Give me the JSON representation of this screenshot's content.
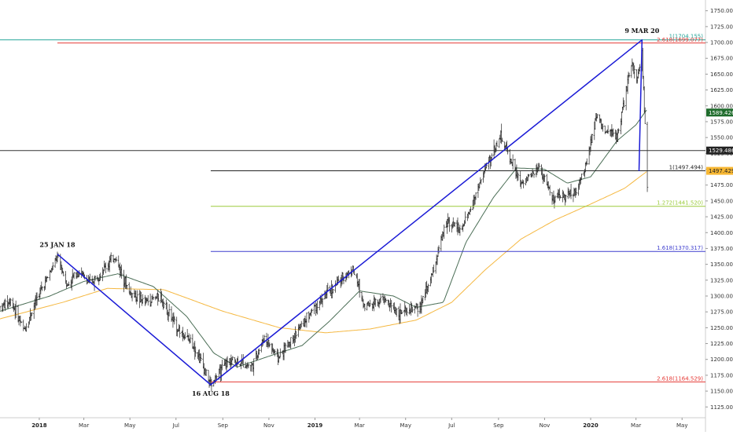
{
  "chart_data": {
    "type": "candlestick",
    "ylim": [
      1108,
      1762
    ],
    "x_start": "2017-11-10",
    "x_end": "2020-06-01",
    "y_ticks": [
      1125,
      1150,
      1175,
      1200,
      1225,
      1250,
      1275,
      1300,
      1325,
      1350,
      1375,
      1400,
      1425,
      1450,
      1475,
      1500,
      1525,
      1550,
      1575,
      1600,
      1625,
      1650,
      1675,
      1700,
      1725,
      1750
    ],
    "x_ticks": [
      {
        "label": "2018",
        "date": "2018-01-01",
        "bold": true
      },
      {
        "label": "Mar",
        "date": "2018-03-01"
      },
      {
        "label": "May",
        "date": "2018-05-01"
      },
      {
        "label": "Jul",
        "date": "2018-07-01"
      },
      {
        "label": "Sep",
        "date": "2018-09-01"
      },
      {
        "label": "Nov",
        "date": "2018-11-01"
      },
      {
        "label": "2019",
        "date": "2019-01-01",
        "bold": true
      },
      {
        "label": "Mar",
        "date": "2019-03-01"
      },
      {
        "label": "May",
        "date": "2019-05-01"
      },
      {
        "label": "Jul",
        "date": "2019-07-01"
      },
      {
        "label": "Sep",
        "date": "2019-09-01"
      },
      {
        "label": "Nov",
        "date": "2019-11-01"
      },
      {
        "label": "2020",
        "date": "2020-01-01",
        "bold": true
      },
      {
        "label": "Mar",
        "date": "2020-03-01"
      },
      {
        "label": "May",
        "date": "2020-05-01"
      }
    ],
    "price_anchors": [
      [
        "2017-11-10",
        1282
      ],
      [
        "2017-11-25",
        1292
      ],
      [
        "2017-12-12",
        1245
      ],
      [
        "2017-12-28",
        1295
      ],
      [
        "2018-01-25",
        1360
      ],
      [
        "2018-02-08",
        1316
      ],
      [
        "2018-02-20",
        1340
      ],
      [
        "2018-03-10",
        1320
      ],
      [
        "2018-04-11",
        1362
      ],
      [
        "2018-05-01",
        1305
      ],
      [
        "2018-05-20",
        1290
      ],
      [
        "2018-06-10",
        1300
      ],
      [
        "2018-07-01",
        1252
      ],
      [
        "2018-07-25",
        1222
      ],
      [
        "2018-08-16",
        1160
      ],
      [
        "2018-09-10",
        1200
      ],
      [
        "2018-10-10",
        1190
      ],
      [
        "2018-10-26",
        1235
      ],
      [
        "2018-11-13",
        1202
      ],
      [
        "2018-12-05",
        1238
      ],
      [
        "2019-01-01",
        1284
      ],
      [
        "2019-02-20",
        1344
      ],
      [
        "2019-03-07",
        1285
      ],
      [
        "2019-04-01",
        1295
      ],
      [
        "2019-04-23",
        1272
      ],
      [
        "2019-05-20",
        1282
      ],
      [
        "2019-06-05",
        1335
      ],
      [
        "2019-06-25",
        1420
      ],
      [
        "2019-07-15",
        1403
      ],
      [
        "2019-08-06",
        1475
      ],
      [
        "2019-08-20",
        1515
      ],
      [
        "2019-09-04",
        1553
      ],
      [
        "2019-10-01",
        1475
      ],
      [
        "2019-10-25",
        1505
      ],
      [
        "2019-11-12",
        1452
      ],
      [
        "2019-12-12",
        1465
      ],
      [
        "2019-12-24",
        1498
      ],
      [
        "2020-01-08",
        1585
      ],
      [
        "2020-01-20",
        1560
      ],
      [
        "2020-02-05",
        1552
      ],
      [
        "2020-02-24",
        1665
      ],
      [
        "2020-03-03",
        1642
      ],
      [
        "2020-03-09",
        1684
      ],
      [
        "2020-03-16",
        1478
      ]
    ],
    "ma_50": [
      [
        "2017-11-10",
        1276
      ],
      [
        "2018-01-15",
        1300
      ],
      [
        "2018-03-01",
        1323
      ],
      [
        "2018-04-15",
        1335
      ],
      [
        "2018-06-01",
        1315
      ],
      [
        "2018-07-15",
        1268
      ],
      [
        "2018-08-20",
        1210
      ],
      [
        "2018-09-20",
        1188
      ],
      [
        "2018-11-01",
        1205
      ],
      [
        "2018-12-15",
        1222
      ],
      [
        "2019-01-20",
        1260
      ],
      [
        "2019-03-01",
        1308
      ],
      [
        "2019-04-15",
        1300
      ],
      [
        "2019-05-15",
        1282
      ],
      [
        "2019-06-20",
        1290
      ],
      [
        "2019-07-20",
        1385
      ],
      [
        "2019-08-25",
        1455
      ],
      [
        "2019-09-25",
        1502
      ],
      [
        "2019-11-01",
        1500
      ],
      [
        "2019-12-01",
        1478
      ],
      [
        "2020-01-01",
        1488
      ],
      [
        "2020-02-05",
        1545
      ],
      [
        "2020-03-01",
        1570
      ],
      [
        "2020-03-16",
        1595
      ]
    ],
    "ma_200": [
      [
        "2017-11-10",
        1264
      ],
      [
        "2018-02-01",
        1290
      ],
      [
        "2018-04-01",
        1312
      ],
      [
        "2018-06-15",
        1310
      ],
      [
        "2018-09-01",
        1276
      ],
      [
        "2018-11-15",
        1250
      ],
      [
        "2019-01-15",
        1242
      ],
      [
        "2019-03-15",
        1248
      ],
      [
        "2019-05-15",
        1262
      ],
      [
        "2019-07-01",
        1290
      ],
      [
        "2019-08-15",
        1342
      ],
      [
        "2019-10-01",
        1390
      ],
      [
        "2019-11-15",
        1420
      ],
      [
        "2020-01-01",
        1445
      ],
      [
        "2020-02-15",
        1470
      ],
      [
        "2020-03-16",
        1497
      ]
    ],
    "zigzag": [
      {
        "date": "2018-01-25",
        "price": 1366,
        "label": "25 JAN 18",
        "label_pos": "above"
      },
      {
        "date": "2018-08-16",
        "price": 1160,
        "label": "16 AUG 18",
        "label_pos": "below"
      },
      {
        "date": "2020-03-09",
        "price": 1704,
        "label": "9 MAR 20",
        "label_pos": "above"
      },
      {
        "date": "2020-03-05",
        "price": 1497,
        "label": "",
        "label_pos": ""
      }
    ],
    "horizontal_lines": [
      {
        "price": 1704.155,
        "label": "1(1704.155)",
        "color": "#26a69a",
        "start": "left"
      },
      {
        "price": 1699.077,
        "label": "2.618(1699.077)",
        "color": "#e53935",
        "start": "2018-01-25"
      },
      {
        "price": 1529.486,
        "label": "",
        "color": "#333333",
        "start": "left"
      },
      {
        "price": 1497.494,
        "label": "1(1497.494)",
        "color": "#222222",
        "start": "2018-08-16"
      },
      {
        "price": 1441.52,
        "label": "1.272(1441.520)",
        "color": "#9ccc3c",
        "start": "2018-08-16"
      },
      {
        "price": 1370.317,
        "label": "1.618(1370.317)",
        "color": "#3f3fcf",
        "start": "2018-08-16"
      },
      {
        "price": 1164.529,
        "label": "2.618(1164.529)",
        "color": "#e53935",
        "start": "2018-08-16"
      }
    ],
    "price_tags": [
      {
        "price": 1589.426,
        "label": "1589.426",
        "bg": "#1e6b2b",
        "fg": "#ffffff"
      },
      {
        "price": 1529.486,
        "label": "1529.486",
        "bg": "#222222",
        "fg": "#ffffff"
      },
      {
        "price": 1497.429,
        "label": "1497.429",
        "bg": "#f7b733",
        "fg": "#222222"
      }
    ],
    "colors": {
      "candles": "#222222",
      "ma_50": "#4b6e56",
      "ma_200": "#f5b841",
      "zigzag": "#1a1ad6",
      "axis_text": "#333333",
      "axis_border": "#cccccc"
    }
  }
}
